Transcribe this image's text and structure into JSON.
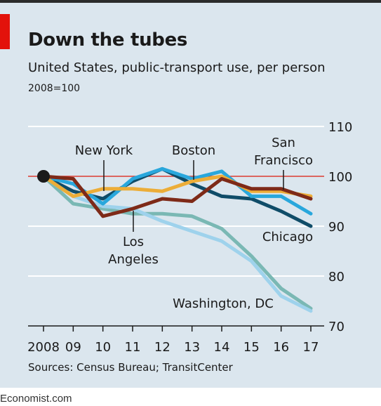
{
  "header": {
    "title": "Down the tubes",
    "subtitle": "United States, public-transport use, per person",
    "unit": "2008=100"
  },
  "footer": {
    "source": "Sources: Census Bureau; TransitCenter",
    "brand": "Economist.com"
  },
  "colors": {
    "background": "#dbe6ee",
    "gridline": "#ffffff",
    "reference_line": "#d0342c",
    "accent_tag": "#e3120b"
  },
  "chart_data": {
    "type": "line",
    "title": "Down the tubes",
    "subtitle": "United States, public-transport use, per person",
    "ylabel": "2008=100",
    "xlabel": "",
    "ylim": [
      70,
      110
    ],
    "x": [
      2008,
      2009,
      2010,
      2011,
      2012,
      2013,
      2014,
      2015,
      2016,
      2017
    ],
    "x_tick_labels": [
      "2008",
      "09",
      "10",
      "11",
      "12",
      "13",
      "14",
      "15",
      "16",
      "17"
    ],
    "y_ticks": [
      70,
      80,
      90,
      100,
      110
    ],
    "y_tick_labels": [
      "70",
      "80",
      "90",
      "100",
      "110"
    ],
    "reference_value": 100,
    "grid": true,
    "series": [
      {
        "name": "Washington, DC",
        "color": "#7ab8b4",
        "values": [
          100,
          94.5,
          93.5,
          92.5,
          92.5,
          92,
          89.5,
          84,
          77.5,
          73.5
        ]
      },
      {
        "name": "Los Angeles",
        "color": "#9ed2ec",
        "values": [
          100,
          96,
          94,
          93.5,
          91,
          89,
          87,
          83,
          76,
          73
        ]
      },
      {
        "name": "Chicago",
        "color": "#0f4c68",
        "values": [
          100,
          97,
          95.5,
          99,
          101.5,
          98.5,
          96,
          95.5,
          93,
          90
        ]
      },
      {
        "name": "Boston",
        "color": "#29a7dc",
        "values": [
          100,
          98.5,
          94.5,
          99.5,
          101.5,
          99.5,
          101,
          96,
          96,
          92.5
        ]
      },
      {
        "name": "New York",
        "color": "#ecad38",
        "values": [
          100,
          96,
          97.5,
          97.5,
          97,
          99,
          100,
          97,
          97,
          96
        ]
      },
      {
        "name": "San Francisco",
        "color": "#7e2a18",
        "values": [
          100,
          99.5,
          92,
          93.5,
          95.5,
          95,
          99.5,
          97.5,
          97.5,
          95.5
        ]
      }
    ],
    "annotations": [
      {
        "series": "New York",
        "lines": [
          "New York"
        ]
      },
      {
        "series": "Boston",
        "lines": [
          "Boston"
        ]
      },
      {
        "series": "San Francisco",
        "lines": [
          "San",
          "Francisco"
        ]
      },
      {
        "series": "Los Angeles",
        "lines": [
          "Los",
          "Angeles"
        ]
      },
      {
        "series": "Chicago",
        "lines": [
          "Chicago"
        ]
      },
      {
        "series": "Washington, DC",
        "lines": [
          "Washington, DC"
        ]
      }
    ]
  }
}
